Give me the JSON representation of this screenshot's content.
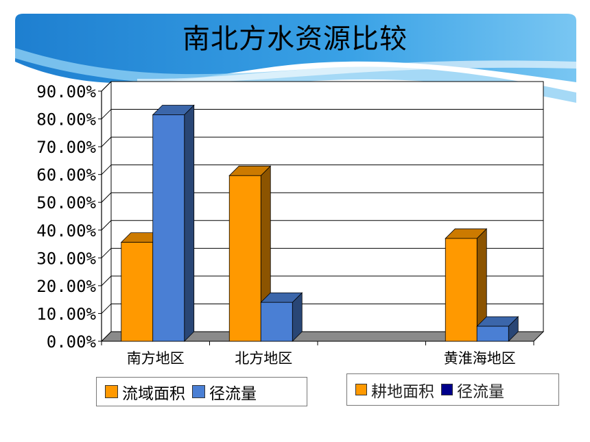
{
  "title": "南北方水资源比较",
  "colors": {
    "orange": "#FF9900",
    "blue": "#4A7FD4",
    "navy": "#00008B"
  },
  "chart_data": {
    "type": "bar",
    "categories": [
      "南方地区",
      "北方地区",
      "",
      "黄淮海地区"
    ],
    "series": [
      {
        "name": "流域面积",
        "values": [
          35.6,
          59.6,
          null,
          37.0
        ]
      },
      {
        "name": "径流量",
        "values": [
          81.5,
          14.0,
          null,
          5.4
        ]
      }
    ],
    "ylim": [
      0,
      90
    ],
    "yticks": [
      "0.00%",
      "10.00%",
      "20.00%",
      "30.00%",
      "40.00%",
      "50.00%",
      "60.00%",
      "70.00%",
      "80.00%",
      "90.00%"
    ],
    "grid": true,
    "legend_placement": "bottom"
  },
  "legend_primary": [
    "流域面积",
    "径流量"
  ],
  "legend_secondary": [
    "耕地面积",
    "径流量"
  ]
}
